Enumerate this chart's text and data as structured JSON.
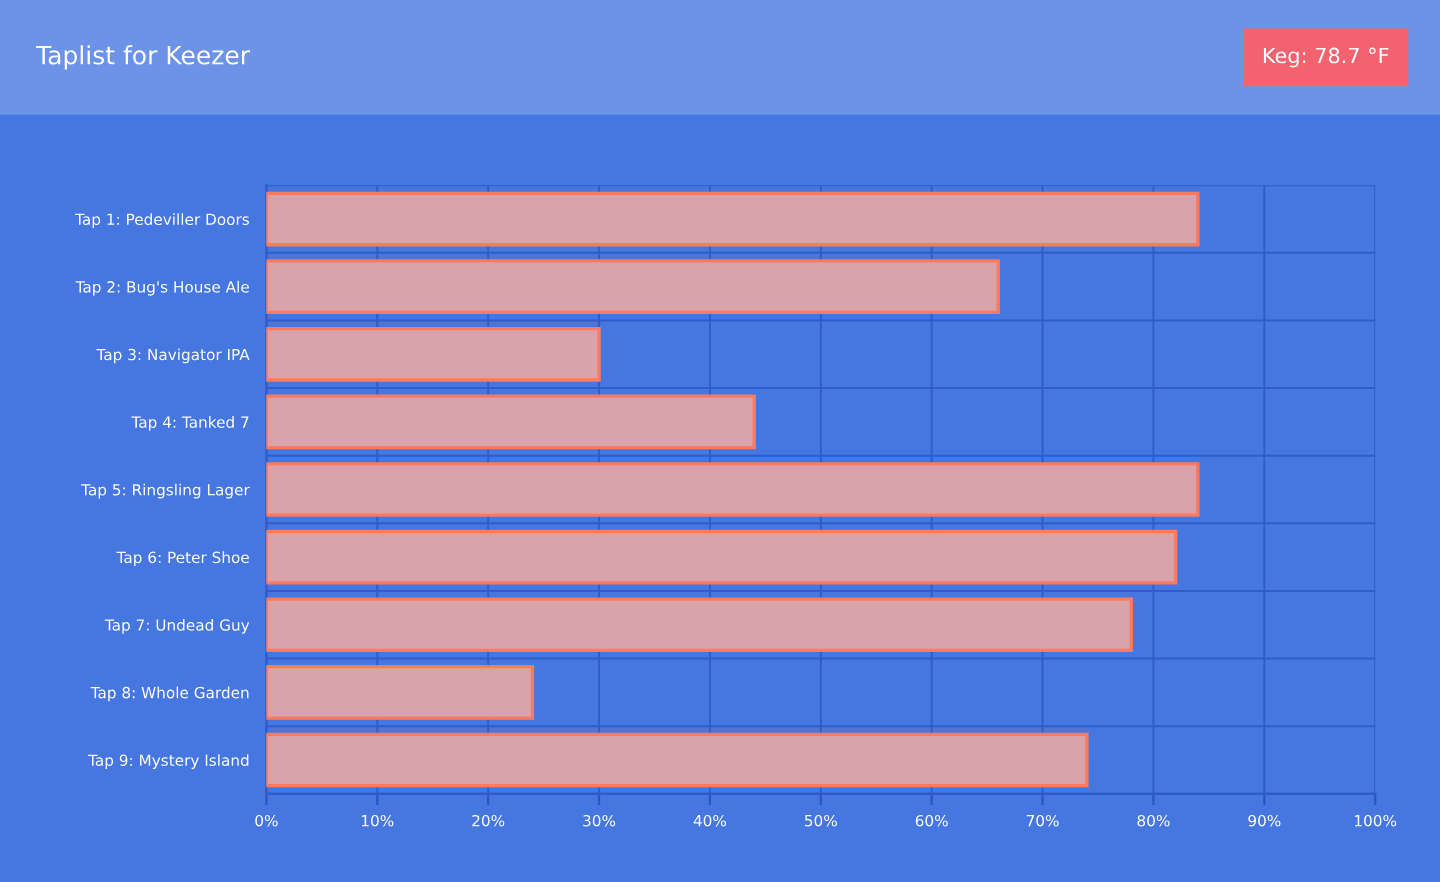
{
  "chart_data": {
    "type": "bar",
    "orientation": "horizontal",
    "title": "Taplist for Keezer",
    "annotations": [
      "Keg: 78.7 °F"
    ],
    "categories": [
      "Tap 1: Pedeviller Doors",
      "Tap 2: Bug's House Ale",
      "Tap 3: Navigator IPA",
      "Tap 4: Tanked 7",
      "Tap 5: Ringsling Lager",
      "Tap 6: Peter Shoe",
      "Tap 7: Undead Guy",
      "Tap 8: Whole Garden",
      "Tap 9: Mystery Island"
    ],
    "values": [
      84,
      66,
      30,
      44,
      84,
      82,
      78,
      24,
      74
    ],
    "color": "#d9a3ab",
    "xlim": [
      0,
      100
    ],
    "xticks": [
      {
        "value": 0,
        "label": "0%"
      },
      {
        "value": 10,
        "label": "10%"
      },
      {
        "value": 20,
        "label": "20%"
      },
      {
        "value": 30,
        "label": "30%"
      },
      {
        "value": 40,
        "label": "40%"
      },
      {
        "value": 50,
        "label": "50%"
      },
      {
        "value": 60,
        "label": "60%"
      },
      {
        "value": 70,
        "label": "70%"
      },
      {
        "value": 80,
        "label": "80%"
      },
      {
        "value": 90,
        "label": "90%"
      },
      {
        "value": 100,
        "label": "100%"
      }
    ],
    "grid": true,
    "legend": false
  }
}
